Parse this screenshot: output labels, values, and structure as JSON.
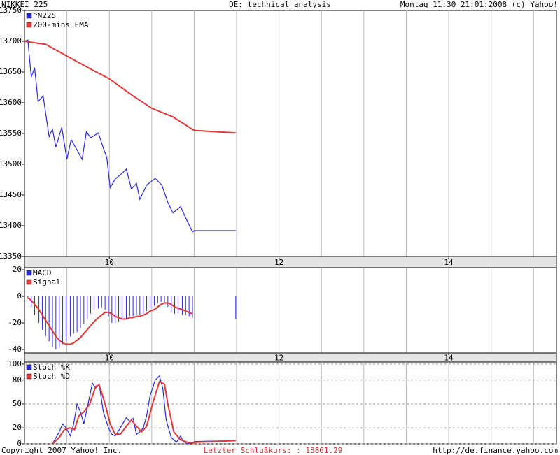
{
  "header": {
    "left": "NIKKEI 225",
    "center": "DE: technical analysis",
    "right": "Montag 11:30 21:01:2008 (c) Yahoo!"
  },
  "footer": {
    "left": "Copyright 2007 Yahoo! Inc.",
    "center": "Letzter Schlußkurs: : 13861.29",
    "right": "http://de.finance.yahoo.com"
  },
  "chart_data": [
    {
      "type": "line",
      "xlim": [
        9,
        15.27
      ],
      "xticks": [
        10,
        12,
        14
      ],
      "xgrid": [
        9.5,
        10,
        10.5,
        11,
        11.5,
        12,
        12.5,
        13,
        13.5,
        14,
        14.5,
        15
      ],
      "ylim": [
        13350,
        13750
      ],
      "yticks": [
        13350,
        13400,
        13450,
        13500,
        13550,
        13600,
        13650,
        13700,
        13750
      ],
      "ygrid": false,
      "series": [
        {
          "name": "^N225",
          "color": "#2a2ae0",
          "type": "line",
          "x": [
            9.0,
            9.04,
            9.08,
            9.12,
            9.16,
            9.22,
            9.29,
            9.33,
            9.37,
            9.44,
            9.5,
            9.55,
            9.62,
            9.68,
            9.73,
            9.78,
            9.87,
            9.93,
            9.97,
            10.01,
            10.07,
            10.13,
            10.2,
            10.26,
            10.32,
            10.36,
            10.44,
            10.54,
            10.62,
            10.69,
            10.75,
            10.84,
            10.9,
            10.98,
            11.0,
            11.49
          ],
          "values": [
            13700,
            13702,
            13642,
            13657,
            13602,
            13611,
            13545,
            13557,
            13528,
            13560,
            13508,
            13540,
            13523,
            13508,
            13553,
            13543,
            13551,
            13526,
            13511,
            13462,
            13476,
            13483,
            13492,
            13460,
            13469,
            13443,
            13466,
            13477,
            13466,
            13438,
            13421,
            13431,
            13413,
            13390,
            13392,
            13392
          ]
        },
        {
          "name": "200-mins EMA",
          "color": "#e03a3a",
          "type": "line",
          "x": [
            9.0,
            9.25,
            9.5,
            9.75,
            10.0,
            10.25,
            10.5,
            10.75,
            11.0,
            11.49
          ],
          "values": [
            13700,
            13695,
            13676,
            13657,
            13639,
            13614,
            13591,
            13577,
            13555,
            13551
          ]
        }
      ]
    },
    {
      "type": "macd",
      "xlim": [
        9,
        15.27
      ],
      "xticks": [
        10,
        12,
        14
      ],
      "xgrid": [
        9.5,
        10,
        10.5,
        11,
        11.5,
        12,
        12.5,
        13,
        13.5,
        14,
        14.5,
        15
      ],
      "ylim": [
        -42.6,
        21.6
      ],
      "yticks": [
        -40,
        -20,
        0,
        20
      ],
      "ygrid": false,
      "x": [
        9.04,
        9.08,
        9.12,
        9.17,
        9.21,
        9.25,
        9.29,
        9.33,
        9.37,
        9.41,
        9.45,
        9.49,
        9.54,
        9.58,
        9.62,
        9.66,
        9.7,
        9.74,
        9.78,
        9.82,
        9.87,
        9.91,
        9.95,
        9.99,
        10.03,
        10.07,
        10.11,
        10.15,
        10.2,
        10.24,
        10.28,
        10.32,
        10.36,
        10.4,
        10.44,
        10.48,
        10.53,
        10.57,
        10.61,
        10.65,
        10.69,
        10.73,
        10.77,
        10.81,
        10.86,
        10.9,
        10.94,
        10.98,
        11.49
      ],
      "series": [
        {
          "name": "MACD",
          "color": "#2a2ae0",
          "type": "bar",
          "values": [
            -2,
            -8,
            -14,
            -20,
            -25,
            -30,
            -34,
            -38,
            -40,
            -39,
            -36,
            -33,
            -30,
            -28,
            -27,
            -24,
            -21,
            -17,
            -13,
            -10,
            -9,
            -8,
            -10,
            -15,
            -20,
            -20,
            -19,
            -17,
            -17,
            -15,
            -15,
            -14,
            -14,
            -13,
            -11,
            -9,
            -7,
            -5,
            -4,
            -5,
            -8,
            -12,
            -13,
            -13,
            -14,
            -14,
            -15,
            -16,
            -17
          ]
        },
        {
          "name": "Signal",
          "color": "#e03a3a",
          "type": "line",
          "values": [
            -1,
            -3,
            -6,
            -10,
            -14,
            -18,
            -22,
            -26,
            -30,
            -33,
            -35,
            -36,
            -36,
            -35,
            -33,
            -31,
            -28,
            -25,
            -22,
            -19,
            -16,
            -14,
            -12,
            -12,
            -13,
            -15,
            -16,
            -17,
            -17,
            -16,
            -16,
            -15,
            -15,
            -14,
            -13,
            -11,
            -10,
            -8,
            -6,
            -5,
            -5,
            -6,
            -8,
            -9,
            -10,
            -11,
            -12,
            -13,
            null
          ]
        }
      ]
    },
    {
      "type": "line",
      "xlim": [
        9,
        15.27
      ],
      "xgrid": [
        9.5,
        10,
        10.5,
        11,
        11.5,
        12,
        12.5,
        13,
        13.5,
        14,
        14.5,
        15
      ],
      "ylim": [
        0,
        102.6
      ],
      "yticks": [
        0,
        20,
        50,
        80,
        100
      ],
      "ygrid": true,
      "series": [
        {
          "name": "Stoch %K",
          "color": "#2a2ae0",
          "type": "line",
          "x": [
            9.33,
            9.41,
            9.45,
            9.49,
            9.54,
            9.58,
            9.62,
            9.66,
            9.7,
            9.77,
            9.8,
            9.84,
            9.88,
            9.93,
            9.99,
            10.03,
            10.07,
            10.13,
            10.2,
            10.24,
            10.28,
            10.32,
            10.36,
            10.4,
            10.44,
            10.48,
            10.54,
            10.59,
            10.63,
            10.67,
            10.73,
            10.79,
            10.84,
            10.87,
            10.92,
            10.98,
            11.02,
            11.49
          ],
          "values": [
            0,
            15,
            25,
            20,
            10,
            25,
            50,
            40,
            25,
            60,
            76,
            70,
            75,
            40,
            20,
            12,
            10,
            20,
            33,
            28,
            32,
            12,
            15,
            20,
            35,
            60,
            80,
            85,
            70,
            30,
            8,
            2,
            10,
            3,
            0,
            2,
            3,
            4
          ]
        },
        {
          "name": "Stoch %D",
          "color": "#e03a3a",
          "type": "line",
          "x": [
            9.33,
            9.41,
            9.47,
            9.54,
            9.59,
            9.64,
            9.7,
            9.77,
            9.84,
            9.88,
            9.95,
            10.01,
            10.07,
            10.13,
            10.2,
            10.26,
            10.32,
            10.38,
            10.44,
            10.51,
            10.59,
            10.65,
            10.69,
            10.76,
            10.84,
            10.92,
            10.98,
            11.02,
            11.49
          ],
          "values": [
            0,
            8,
            18,
            20,
            18,
            35,
            40,
            50,
            72,
            74,
            50,
            25,
            12,
            12,
            22,
            30,
            22,
            15,
            22,
            50,
            78,
            75,
            50,
            15,
            5,
            2,
            1,
            2,
            4
          ]
        }
      ]
    }
  ]
}
